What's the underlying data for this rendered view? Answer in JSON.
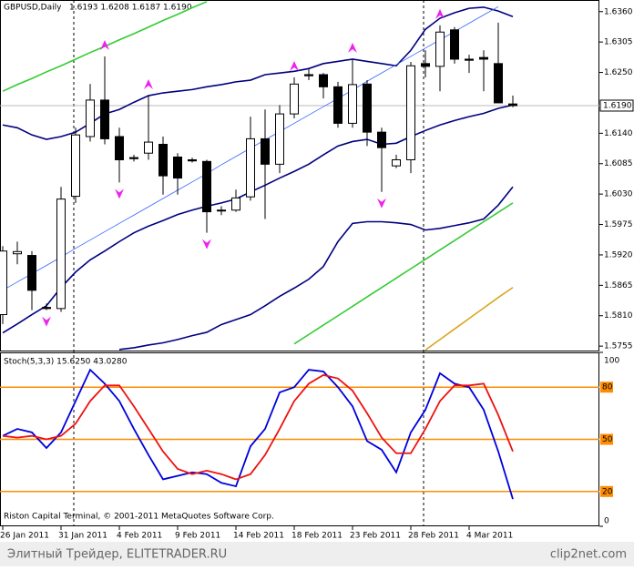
{
  "chart_data": [
    {
      "type": "candlestick",
      "title": "GBPUSD,Daily",
      "subtitle": "1.6193 1.6208 1.6187 1.6190",
      "categories": [
        "26 Jan 2011",
        null,
        null,
        null,
        "31 Jan 2011",
        null,
        null,
        null,
        "4 Feb 2011",
        null,
        null,
        null,
        "9 Feb 2011",
        null,
        null,
        null,
        "14 Feb 2011",
        null,
        null,
        null,
        "18 Feb 2011",
        null,
        null,
        null,
        "23 Feb 2011",
        null,
        null,
        null,
        "28 Feb 2011",
        null,
        null,
        null,
        "4 Mar 2011",
        null,
        null,
        null
      ],
      "open": [
        1.5812,
        1.5922,
        1.5919,
        1.5825,
        1.5823,
        1.6026,
        1.6134,
        1.62,
        1.6134,
        1.6096,
        1.6104,
        1.612,
        1.6097,
        1.6092,
        1.6089,
        1.6001,
        1.6001,
        1.6025,
        1.613,
        1.6084,
        1.6175,
        1.6246,
        1.6246,
        1.6224,
        1.6158,
        1.6229,
        1.6142,
        1.6081,
        1.6092,
        1.6266,
        1.6261,
        1.6327,
        1.6274,
        1.6277,
        1.6266,
        1.6193
      ],
      "high": [
        1.5936,
        1.5944,
        1.5927,
        1.5832,
        1.6043,
        1.615,
        1.6229,
        1.6279,
        1.615,
        1.6101,
        1.6208,
        1.6134,
        1.6104,
        1.6096,
        1.6092,
        1.6008,
        1.6038,
        1.617,
        1.6183,
        1.6191,
        1.6241,
        1.6257,
        1.6249,
        1.6233,
        1.6274,
        1.6236,
        1.615,
        1.6101,
        1.6269,
        1.629,
        1.6335,
        1.6332,
        1.6282,
        1.629,
        1.634,
        1.6208
      ],
      "low": [
        1.5795,
        1.5903,
        1.582,
        1.582,
        1.5817,
        1.6014,
        1.6125,
        1.612,
        1.6051,
        1.6089,
        1.6092,
        1.6029,
        1.6029,
        1.6087,
        1.596,
        1.5992,
        1.5998,
        1.6018,
        1.5985,
        1.6068,
        1.6167,
        1.6236,
        1.6203,
        1.615,
        1.615,
        1.6117,
        1.6034,
        1.6077,
        1.6068,
        1.6241,
        1.6216,
        1.6266,
        1.6249,
        1.6216,
        1.6195,
        1.6187
      ],
      "close": [
        1.5927,
        1.5926,
        1.5856,
        1.5823,
        1.6021,
        1.6137,
        1.62,
        1.613,
        1.6092,
        1.6094,
        1.6124,
        1.6063,
        1.6059,
        1.609,
        1.5998,
        1.6,
        1.6023,
        1.613,
        1.6084,
        1.6175,
        1.6229,
        1.6244,
        1.6224,
        1.6158,
        1.6228,
        1.6142,
        1.6114,
        1.6092,
        1.6262,
        1.6261,
        1.6323,
        1.6274,
        1.6272,
        1.6274,
        1.6195,
        1.619
      ],
      "up_color": "#ffffff",
      "down_color": "#000000",
      "overlays": [
        {
          "color": "#000080",
          "values": [
            1.6155,
            1.615,
            1.6137,
            1.6129,
            1.6134,
            1.6142,
            1.6158,
            1.6175,
            1.6183,
            1.6196,
            1.6208,
            1.6213,
            1.6216,
            1.6219,
            1.6224,
            1.6228,
            1.6233,
            1.6236,
            1.6246,
            1.6249,
            1.6252,
            1.6257,
            1.6266,
            1.627,
            1.6274,
            1.627,
            1.6266,
            1.6262,
            1.629,
            1.6328,
            1.6348,
            1.6358,
            1.6366,
            1.6368,
            1.6361,
            1.6351
          ]
        },
        {
          "color": "#000080",
          "values": [
            1.5779,
            1.5795,
            1.5812,
            1.5828,
            1.5861,
            1.5889,
            1.5911,
            1.5927,
            1.5944,
            1.596,
            1.5972,
            1.5982,
            1.5993,
            1.6001,
            1.6008,
            1.6014,
            1.6021,
            1.6034,
            1.6046,
            1.6059,
            1.6071,
            1.6084,
            1.6101,
            1.6117,
            1.6125,
            1.6129,
            1.612,
            1.6122,
            1.6134,
            1.6145,
            1.6155,
            1.6163,
            1.617,
            1.6176,
            1.6185,
            1.6191
          ]
        },
        {
          "color": "#000080",
          "values": [
            null,
            null,
            null,
            null,
            null,
            null,
            null,
            null,
            1.5749,
            1.5752,
            1.5757,
            1.5761,
            1.5767,
            1.5774,
            1.578,
            1.5794,
            1.5803,
            1.5812,
            1.5828,
            1.5845,
            1.586,
            1.5876,
            1.5899,
            1.5944,
            1.5977,
            1.598,
            1.598,
            1.5978,
            1.5975,
            1.5965,
            1.5968,
            1.5973,
            1.5978,
            1.5985,
            1.601,
            1.6043
          ]
        },
        {
          "color": "#3366ff",
          "width": 0.8,
          "values": [
            1.5856,
            1.5871,
            1.5886,
            1.5901,
            1.5916,
            1.5932,
            1.5947,
            1.5962,
            1.5977,
            1.5992,
            1.6007,
            1.6022,
            1.6037,
            1.6052,
            1.6067,
            1.6083,
            1.6098,
            1.6113,
            1.6128,
            1.6143,
            1.6158,
            1.6173,
            1.6188,
            1.6203,
            1.6218,
            1.6234,
            1.6249,
            1.6264,
            1.6279,
            1.6294,
            1.6309,
            1.6324,
            1.6339,
            1.6354,
            1.6369,
            null
          ]
        },
        {
          "color": "#33cc33",
          "values": [
            1.6216,
            1.6228,
            1.6239,
            1.6251,
            1.6262,
            1.6274,
            1.6286,
            1.6297,
            1.6309,
            1.632,
            1.6332,
            1.6344,
            1.6355,
            1.6367,
            1.6378,
            null,
            null,
            null,
            null,
            null,
            null,
            null,
            null,
            null,
            null,
            null,
            null,
            null,
            null,
            null,
            null,
            null,
            null,
            null,
            null,
            null
          ]
        },
        {
          "color": "#33cc33",
          "values": [
            null,
            null,
            null,
            null,
            null,
            null,
            null,
            null,
            null,
            null,
            null,
            null,
            null,
            null,
            null,
            null,
            null,
            null,
            null,
            null,
            1.5759,
            1.5776,
            1.5793,
            1.581,
            1.5827,
            1.5844,
            1.5861,
            1.5878,
            1.5895,
            1.5912,
            1.5929,
            1.5946,
            1.5963,
            1.598,
            1.5997,
            1.6014
          ]
        },
        {
          "color": "#daa520",
          "values": [
            null,
            null,
            null,
            null,
            null,
            null,
            null,
            null,
            null,
            null,
            null,
            null,
            null,
            null,
            null,
            null,
            null,
            null,
            null,
            null,
            null,
            null,
            null,
            null,
            null,
            null,
            null,
            null,
            null,
            1.5748,
            1.5767,
            1.5786,
            1.5805,
            1.5824,
            1.5843,
            1.5861
          ]
        }
      ],
      "fractal_color": "#ee22ee",
      "fractals_up": [
        7,
        10,
        20,
        24,
        30
      ],
      "fractals_down": [
        3,
        8,
        14,
        26
      ],
      "price_label": {
        "value": 1.619,
        "label": "1.6190"
      },
      "ylim": [
        1.5747,
        1.6381
      ],
      "yticks": [
        {
          "value": 1.636,
          "label": "1.6360"
        },
        {
          "value": 1.6305,
          "label": "1.6305"
        },
        {
          "value": 1.625,
          "label": "1.6250"
        },
        {
          "value": 1.614,
          "label": "1.6140"
        },
        {
          "value": 1.6085,
          "label": "1.6085"
        },
        {
          "value": 1.603,
          "label": "1.6030"
        },
        {
          "value": 1.5975,
          "label": "1.5975"
        },
        {
          "value": 1.592,
          "label": "1.5920"
        },
        {
          "value": 1.5865,
          "label": "1.5865"
        },
        {
          "value": 1.581,
          "label": "1.5810"
        },
        {
          "value": 1.5755,
          "label": "1.5755"
        }
      ]
    },
    {
      "type": "line",
      "title": "Stoch(5,3,3) 15.6250 43.0280",
      "annotation": "Riston Capital Terminal, © 2001-2011 MetaQuotes Software Corp.",
      "series": [
        {
          "color": "#0000dd",
          "values": [
            52,
            56,
            54,
            45,
            54,
            72,
            90,
            82,
            72,
            56,
            41,
            27,
            29,
            31,
            30,
            25,
            23,
            46,
            56,
            77,
            80,
            90,
            89,
            80,
            69,
            49,
            44,
            31,
            54,
            67,
            88,
            82,
            80,
            67,
            43,
            15.625
          ]
        },
        {
          "color": "#ee1111",
          "values": [
            52,
            51,
            52,
            50,
            52,
            59,
            72,
            81,
            81,
            69,
            56,
            43,
            33,
            30,
            32,
            30,
            27,
            30,
            41,
            56,
            72,
            82,
            87,
            85,
            78,
            65,
            51,
            42,
            42,
            56,
            72,
            81,
            81,
            82,
            64,
            43.028
          ]
        }
      ],
      "levels": [
        80,
        50,
        20
      ],
      "level_color": "#ff8c00",
      "ylim": [
        0,
        100
      ],
      "yticks": [
        100,
        0
      ]
    }
  ],
  "footer": {
    "left": "Элитный Трейдер, ELITETRADER.RU",
    "right": "clip2net.com"
  }
}
